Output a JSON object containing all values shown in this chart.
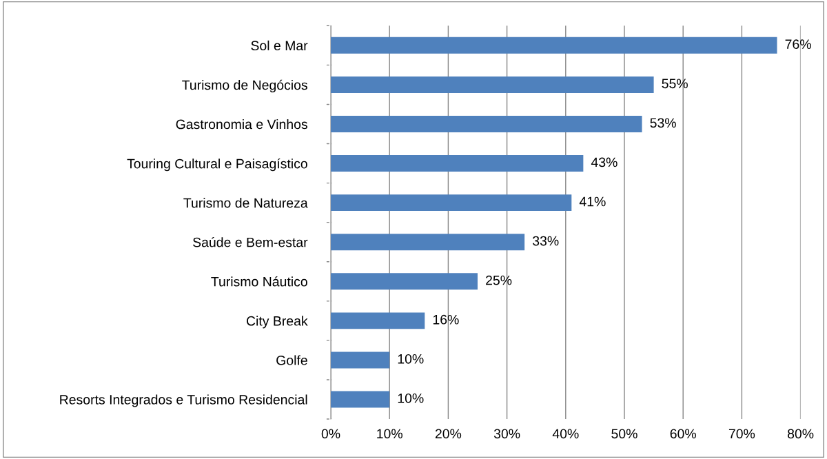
{
  "chart_data": {
    "type": "bar",
    "orientation": "horizontal",
    "categories": [
      "Sol e Mar",
      "Turismo de Negócios",
      "Gastronomia e Vinhos",
      "Touring Cultural e Paisagístico",
      "Turismo de Natureza",
      "Saúde e Bem-estar",
      "Turismo Náutico",
      "City Break",
      "Golfe",
      "Resorts Integrados e Turismo Residencial"
    ],
    "values": [
      76,
      55,
      53,
      43,
      41,
      33,
      25,
      16,
      10,
      10
    ],
    "value_labels": [
      "76%",
      "55%",
      "53%",
      "43%",
      "41%",
      "33%",
      "25%",
      "16%",
      "10%",
      "10%"
    ],
    "color": "#4f81bd",
    "xlim": [
      0,
      80
    ],
    "xticks": [
      {
        "value": 0,
        "label": "0%"
      },
      {
        "value": 10,
        "label": "10%"
      },
      {
        "value": 20,
        "label": "20%"
      },
      {
        "value": 30,
        "label": "30%"
      },
      {
        "value": 40,
        "label": "40%"
      },
      {
        "value": 50,
        "label": "50%"
      },
      {
        "value": 60,
        "label": "60%"
      },
      {
        "value": 70,
        "label": "70%"
      },
      {
        "value": 80,
        "label": "80%"
      }
    ],
    "grid": "x"
  }
}
